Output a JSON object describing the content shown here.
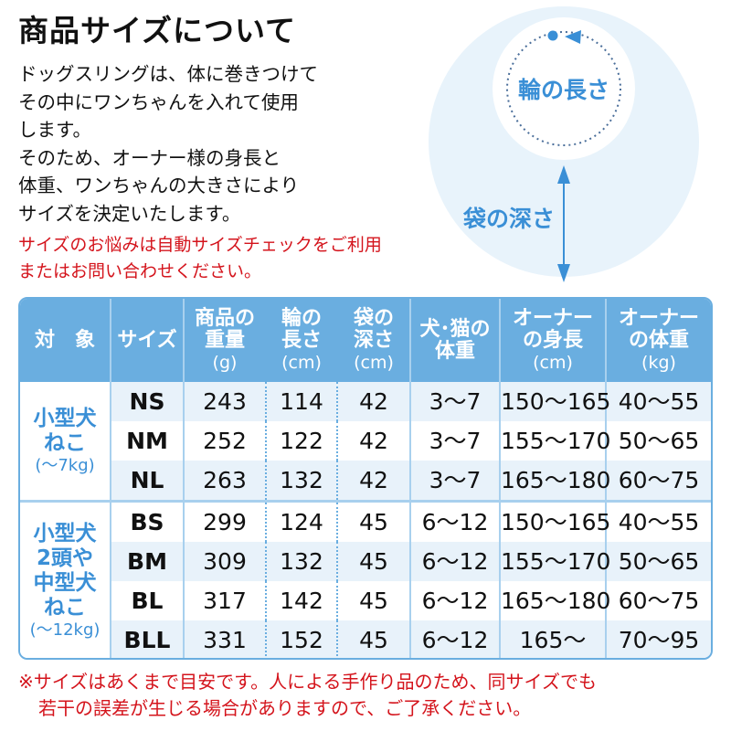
{
  "title": "商品サイズについて",
  "description": [
    "ドッグスリングは、体に巻きつけて",
    "その中にワンちゃんを入れて使用",
    "します。",
    "そのため、オーナー様の身長と",
    "体重、ワンちゃんの大きさにより",
    "サイズを決定いたします。"
  ],
  "notice": [
    "サイズのお悩みは自動サイズチェックをご利用",
    "またはお問い合わせください。"
  ],
  "diagram": {
    "ring_label": "輪の長さ",
    "depth_label": "袋の深さ",
    "color": "#3a8fd6",
    "bg": "#e8f3fb"
  },
  "table": {
    "headers": [
      {
        "lines": [
          "対　象"
        ],
        "unit": ""
      },
      {
        "lines": [
          "サイズ"
        ],
        "unit": ""
      },
      {
        "lines": [
          "商品の",
          "重量"
        ],
        "unit": "(g)"
      },
      {
        "lines": [
          "輪の",
          "長さ"
        ],
        "unit": "(cm)"
      },
      {
        "lines": [
          "袋の",
          "深さ"
        ],
        "unit": "(cm)"
      },
      {
        "lines": [
          "犬･猫の",
          "体重"
        ],
        "unit": ""
      },
      {
        "lines": [
          "オーナー",
          "の身長"
        ],
        "unit": "(cm)"
      },
      {
        "lines": [
          "オーナー",
          "の体重"
        ],
        "unit": "(kg)"
      }
    ],
    "groups": [
      {
        "target": [
          "小型犬",
          "ねこ"
        ],
        "target_unit": "(〜7kg)",
        "rows": [
          [
            "NS",
            "243",
            "114",
            "42",
            "3〜7",
            "150〜165",
            "40〜55"
          ],
          [
            "NM",
            "252",
            "122",
            "42",
            "3〜7",
            "155〜170",
            "50〜65"
          ],
          [
            "NL",
            "263",
            "132",
            "42",
            "3〜7",
            "165〜180",
            "60〜75"
          ]
        ]
      },
      {
        "target": [
          "小型犬",
          "2頭や",
          "中型犬",
          "ねこ"
        ],
        "target_unit": "(〜12kg)",
        "rows": [
          [
            "BS",
            "299",
            "124",
            "45",
            "6〜12",
            "150〜165",
            "40〜55"
          ],
          [
            "BM",
            "309",
            "132",
            "45",
            "6〜12",
            "155〜170",
            "50〜65"
          ],
          [
            "BL",
            "317",
            "142",
            "45",
            "6〜12",
            "165〜180",
            "60〜75"
          ],
          [
            "BLL",
            "331",
            "152",
            "45",
            "6〜12",
            "165〜",
            "70〜95"
          ]
        ]
      }
    ],
    "header_color": "#6aaee0",
    "stripe_color": "#e8f2fa"
  },
  "footnote": [
    "※サイズはあくまで目安です。人による手作り品のため、同サイズでも",
    "若干の誤差が生じる場合がありますので、ご了承ください。"
  ],
  "accent_red": "#d4141c"
}
